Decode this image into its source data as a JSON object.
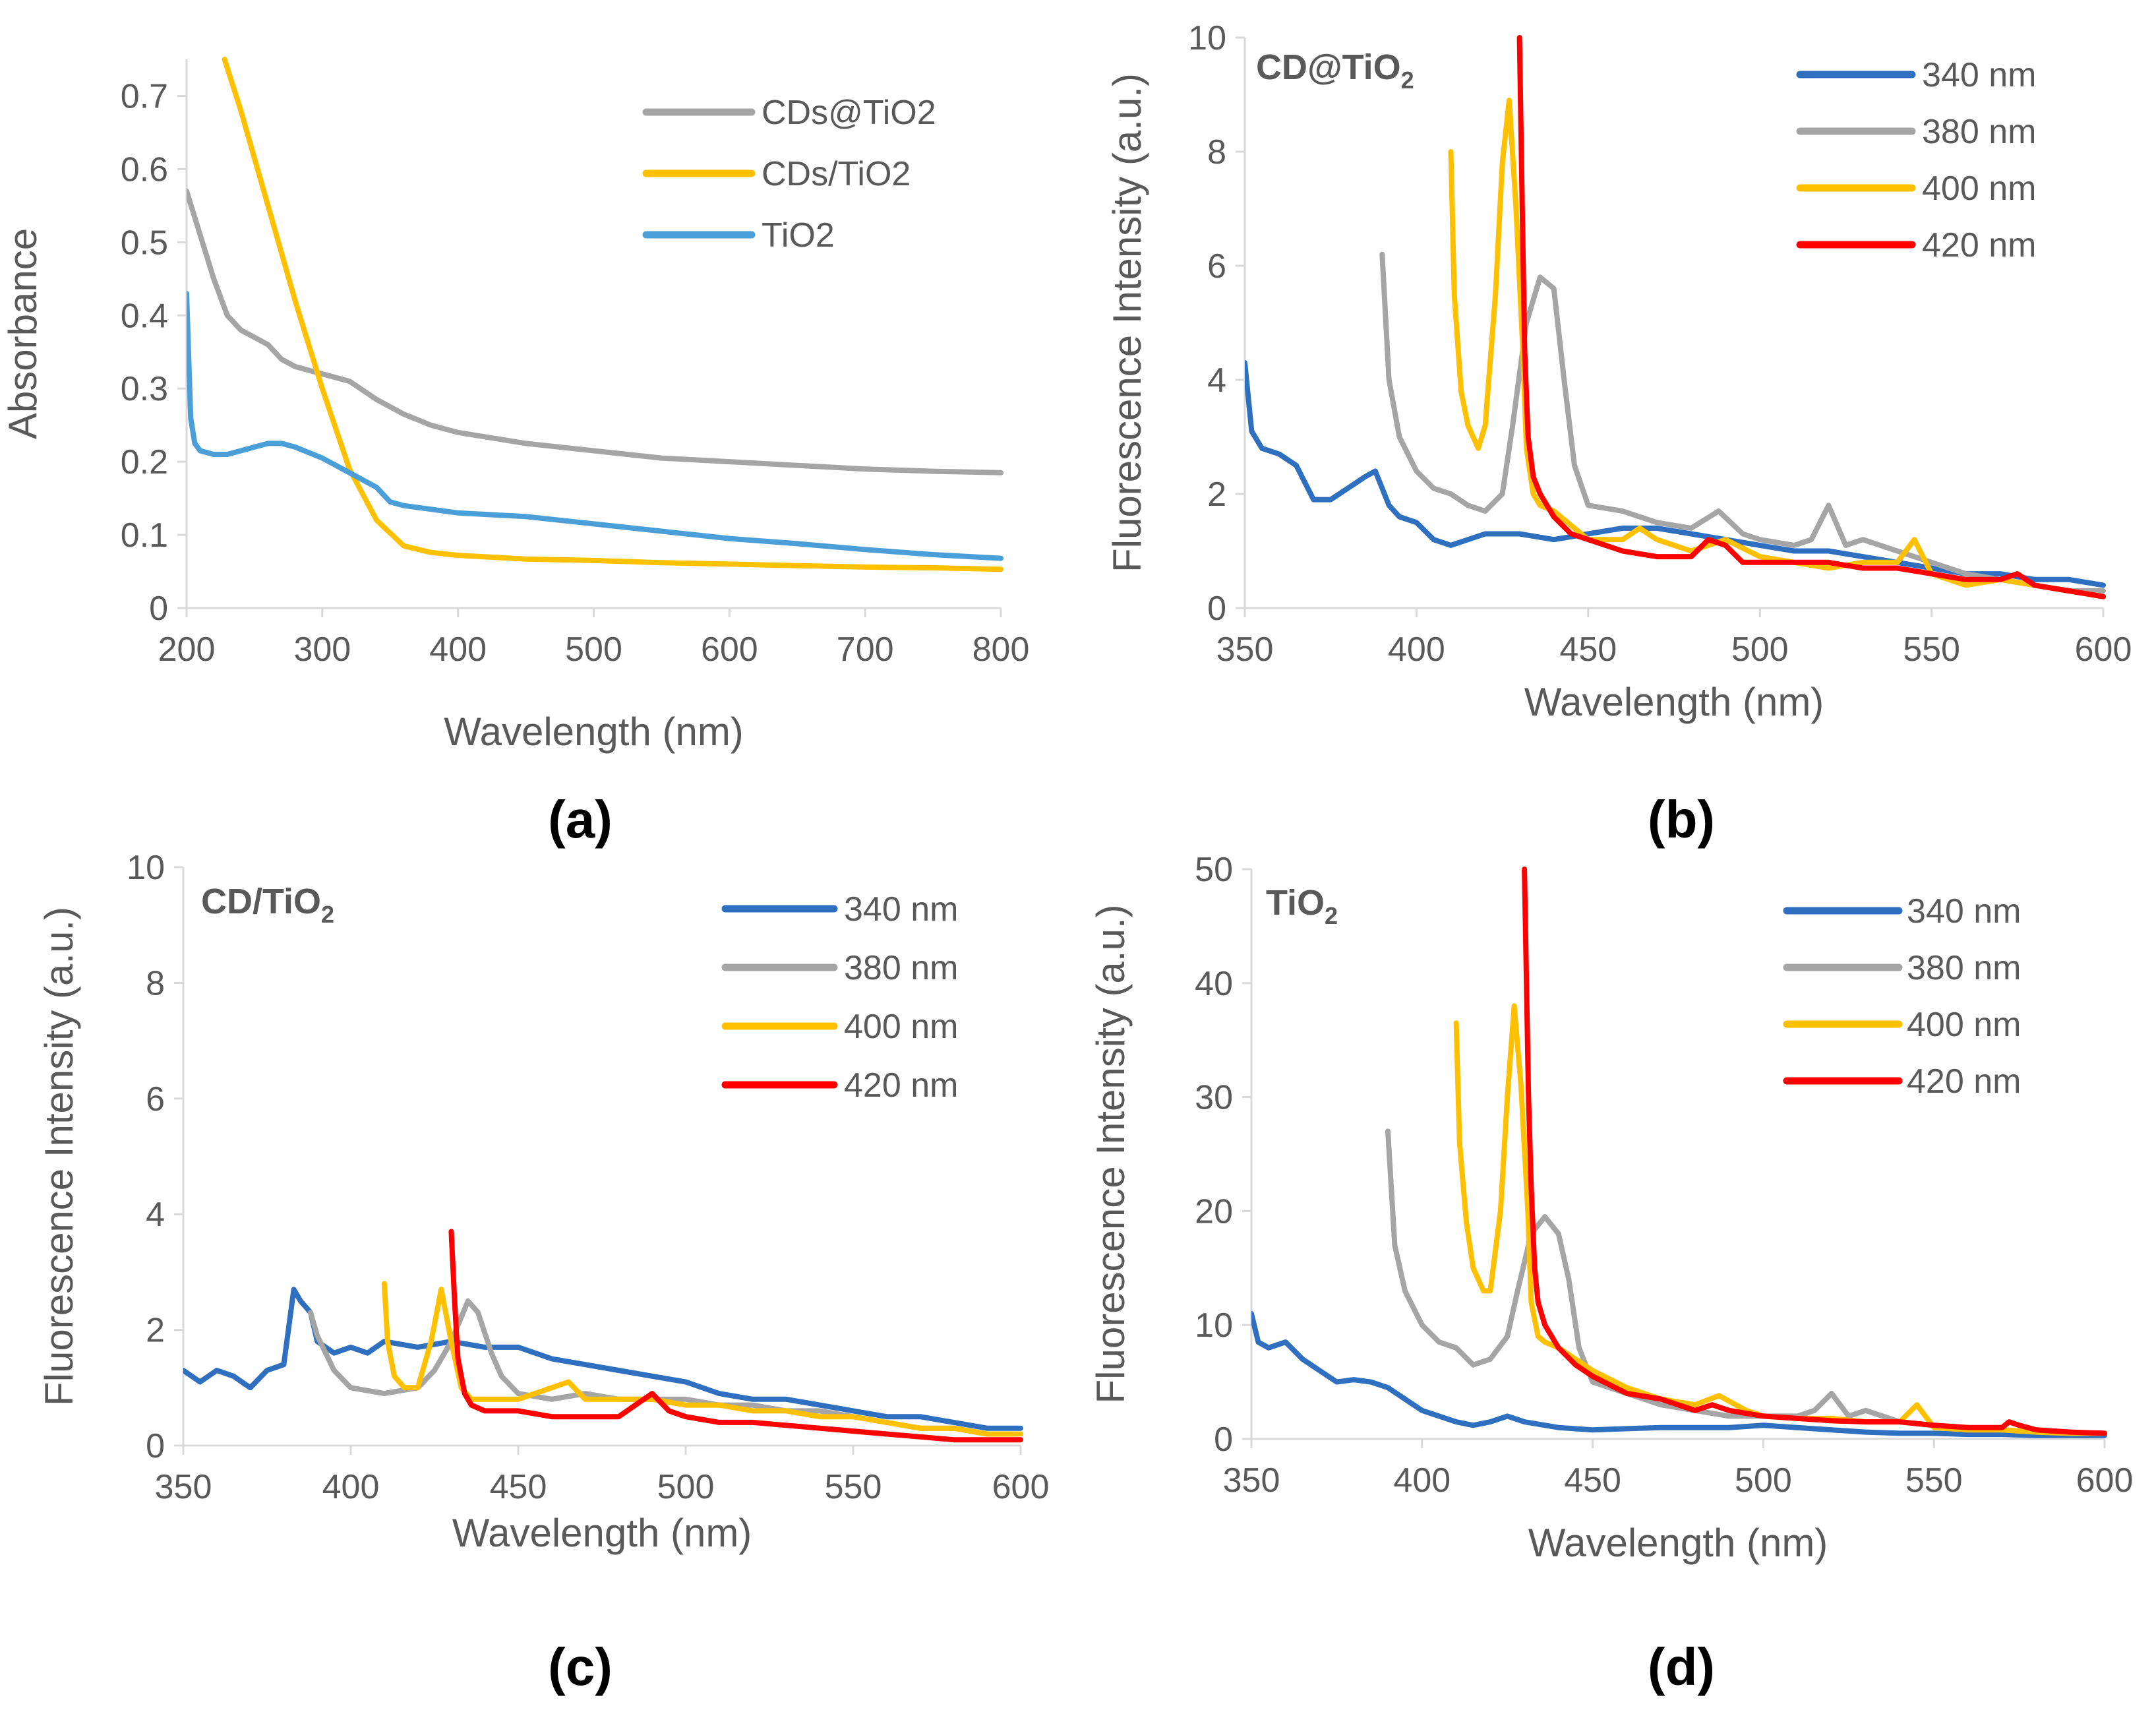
{
  "colors": {
    "gray": "#a5a5a5",
    "yellow": "#ffc000",
    "blue": "#4a9fd9",
    "darkblue": "#2e6fbf",
    "red": "#ff0000"
  },
  "chart_data": [
    {
      "id": "a",
      "type": "line",
      "panel_label": "(a)",
      "title": "",
      "xlabel": "Wavelength (nm)",
      "ylabel": "Absorbance",
      "xlim": [
        200,
        800
      ],
      "ylim": [
        0,
        0.75
      ],
      "xticks": [
        200,
        300,
        400,
        500,
        600,
        700,
        800
      ],
      "yticks": [
        0,
        0.1,
        0.2,
        0.3,
        0.4,
        0.5,
        0.6,
        0.7
      ],
      "ytick_labels": [
        "0",
        "0.1",
        "0.2",
        "0.3",
        "0.4",
        "0.5",
        "0.6",
        "0.7"
      ],
      "legend_position": "top-right",
      "series": [
        {
          "name": "CDs@TiO2",
          "color": "#a5a5a5",
          "x": [
            200,
            210,
            220,
            230,
            240,
            250,
            260,
            270,
            280,
            290,
            300,
            320,
            340,
            360,
            380,
            400,
            450,
            500,
            550,
            600,
            650,
            700,
            750,
            800
          ],
          "y": [
            0.57,
            0.51,
            0.45,
            0.4,
            0.38,
            0.37,
            0.36,
            0.34,
            0.33,
            0.325,
            0.32,
            0.31,
            0.285,
            0.265,
            0.25,
            0.24,
            0.225,
            0.215,
            0.205,
            0.2,
            0.195,
            0.19,
            0.187,
            0.185
          ]
        },
        {
          "name": "CDs/TiO2",
          "color": "#ffc000",
          "x": [
            228,
            240,
            260,
            280,
            300,
            320,
            340,
            360,
            380,
            400,
            450,
            500,
            550,
            600,
            650,
            700,
            750,
            800
          ],
          "y": [
            0.75,
            0.68,
            0.55,
            0.42,
            0.3,
            0.19,
            0.12,
            0.085,
            0.076,
            0.072,
            0.067,
            0.065,
            0.062,
            0.06,
            0.058,
            0.056,
            0.055,
            0.053
          ]
        },
        {
          "name": "TiO2",
          "color": "#4a9fd9",
          "x": [
            200,
            203,
            206,
            210,
            220,
            230,
            240,
            250,
            260,
            270,
            280,
            300,
            320,
            340,
            350,
            360,
            380,
            400,
            450,
            500,
            550,
            600,
            650,
            700,
            750,
            800
          ],
          "y": [
            0.43,
            0.26,
            0.225,
            0.215,
            0.21,
            0.21,
            0.215,
            0.22,
            0.225,
            0.225,
            0.22,
            0.205,
            0.185,
            0.165,
            0.145,
            0.14,
            0.135,
            0.13,
            0.125,
            0.115,
            0.105,
            0.095,
            0.088,
            0.08,
            0.073,
            0.068
          ]
        }
      ]
    },
    {
      "id": "b",
      "type": "line",
      "panel_label": "(b)",
      "title": "CD@TiO",
      "title_sub": "2",
      "xlabel": "Wavelength (nm)",
      "ylabel": "Fluorescence Intensity (a.u.)",
      "xlim": [
        350,
        600
      ],
      "ylim": [
        0,
        10
      ],
      "xticks": [
        350,
        400,
        450,
        500,
        550,
        600
      ],
      "yticks": [
        0,
        2,
        4,
        6,
        8,
        10
      ],
      "ytick_labels": [
        "0",
        "2",
        "4",
        "6",
        "8",
        "10"
      ],
      "legend_position": "top-right",
      "series": [
        {
          "name": "340 nm",
          "color": "#2e6fbf",
          "x": [
            350,
            352,
            355,
            360,
            365,
            370,
            375,
            380,
            385,
            388,
            392,
            395,
            400,
            405,
            410,
            420,
            430,
            440,
            450,
            460,
            470,
            480,
            490,
            500,
            510,
            520,
            530,
            540,
            550,
            560,
            570,
            580,
            590,
            600
          ],
          "y": [
            4.3,
            3.1,
            2.8,
            2.7,
            2.5,
            1.9,
            1.9,
            2.1,
            2.3,
            2.4,
            1.8,
            1.6,
            1.5,
            1.2,
            1.1,
            1.3,
            1.3,
            1.2,
            1.3,
            1.4,
            1.4,
            1.3,
            1.2,
            1.1,
            1.0,
            1.0,
            0.9,
            0.8,
            0.7,
            0.6,
            0.6,
            0.5,
            0.5,
            0.4
          ]
        },
        {
          "name": "380 nm",
          "color": "#a5a5a5",
          "x": [
            390,
            392,
            395,
            400,
            405,
            410,
            415,
            420,
            425,
            428,
            432,
            436,
            440,
            443,
            446,
            450,
            460,
            470,
            480,
            488,
            495,
            500,
            510,
            515,
            520,
            525,
            530,
            540,
            550,
            560,
            570,
            580,
            590,
            600
          ],
          "y": [
            6.2,
            4.0,
            3.0,
            2.4,
            2.1,
            2.0,
            1.8,
            1.7,
            2.0,
            3.2,
            5.0,
            5.8,
            5.6,
            4.0,
            2.5,
            1.8,
            1.7,
            1.5,
            1.4,
            1.7,
            1.3,
            1.2,
            1.1,
            1.2,
            1.8,
            1.1,
            1.2,
            1.0,
            0.8,
            0.6,
            0.5,
            0.4,
            0.3,
            0.3
          ]
        },
        {
          "name": "400 nm",
          "color": "#ffc000",
          "x": [
            410,
            411,
            413,
            415,
            418,
            420,
            423,
            425,
            427,
            429,
            431,
            432,
            434,
            436,
            440,
            450,
            460,
            465,
            470,
            480,
            490,
            500,
            510,
            520,
            530,
            540,
            545,
            550,
            560,
            570,
            580,
            590,
            600
          ],
          "y": [
            8.0,
            5.5,
            3.8,
            3.2,
            2.8,
            3.2,
            5.5,
            7.8,
            8.9,
            7.0,
            4.5,
            2.8,
            2.0,
            1.8,
            1.7,
            1.2,
            1.2,
            1.4,
            1.2,
            1.0,
            1.2,
            0.9,
            0.8,
            0.7,
            0.8,
            0.8,
            1.2,
            0.6,
            0.4,
            0.5,
            0.4,
            0.3,
            0.2
          ]
        },
        {
          "name": "420 nm",
          "color": "#ff0000",
          "x": [
            430,
            430.8,
            431.5,
            432.5,
            434,
            436,
            440,
            445,
            450,
            460,
            470,
            480,
            485,
            490,
            495,
            500,
            510,
            520,
            530,
            540,
            550,
            560,
            570,
            575,
            580,
            590,
            600
          ],
          "y": [
            10,
            7.0,
            4.5,
            3.0,
            2.3,
            2.0,
            1.6,
            1.3,
            1.2,
            1.0,
            0.9,
            0.9,
            1.2,
            1.1,
            0.8,
            0.8,
            0.8,
            0.8,
            0.7,
            0.7,
            0.6,
            0.5,
            0.5,
            0.6,
            0.4,
            0.3,
            0.2
          ]
        }
      ]
    },
    {
      "id": "c",
      "type": "line",
      "panel_label": "(c)",
      "title": "CD/TiO",
      "title_sub": "2",
      "xlabel": "Wavelength (nm)",
      "ylabel": "Fluorescence Intensity (a.u.)",
      "xlim": [
        350,
        600
      ],
      "ylim": [
        0,
        10
      ],
      "xticks": [
        350,
        400,
        450,
        500,
        550,
        600
      ],
      "yticks": [
        0,
        2,
        4,
        6,
        8,
        10
      ],
      "ytick_labels": [
        "0",
        "2",
        "4",
        "6",
        "8",
        "10"
      ],
      "legend_position": "top-right",
      "series": [
        {
          "name": "340 nm",
          "color": "#2e6fbf",
          "x": [
            350,
            355,
            360,
            365,
            370,
            375,
            380,
            383,
            385,
            388,
            390,
            395,
            400,
            405,
            410,
            420,
            430,
            440,
            450,
            460,
            470,
            480,
            490,
            500,
            510,
            520,
            530,
            540,
            550,
            560,
            570,
            580,
            590,
            600
          ],
          "y": [
            1.3,
            1.1,
            1.3,
            1.2,
            1.0,
            1.3,
            1.4,
            2.7,
            2.5,
            2.3,
            1.8,
            1.6,
            1.7,
            1.6,
            1.8,
            1.7,
            1.8,
            1.7,
            1.7,
            1.5,
            1.4,
            1.3,
            1.2,
            1.1,
            0.9,
            0.8,
            0.8,
            0.7,
            0.6,
            0.5,
            0.5,
            0.4,
            0.3,
            0.3
          ]
        },
        {
          "name": "380 nm",
          "color": "#a5a5a5",
          "x": [
            388,
            390,
            395,
            400,
            410,
            420,
            425,
            430,
            435,
            438,
            442,
            445,
            450,
            460,
            470,
            480,
            490,
            500,
            510,
            520,
            530,
            540,
            550,
            560,
            570,
            580,
            590,
            600
          ],
          "y": [
            2.3,
            1.9,
            1.3,
            1.0,
            0.9,
            1.0,
            1.3,
            1.8,
            2.5,
            2.3,
            1.6,
            1.2,
            0.9,
            0.8,
            0.9,
            0.8,
            0.8,
            0.8,
            0.7,
            0.7,
            0.6,
            0.6,
            0.5,
            0.4,
            0.3,
            0.3,
            0.2,
            0.2
          ]
        },
        {
          "name": "400 nm",
          "color": "#ffc000",
          "x": [
            410,
            411,
            413,
            416,
            420,
            424,
            427,
            430,
            433,
            436,
            440,
            450,
            460,
            465,
            470,
            480,
            490,
            500,
            510,
            520,
            530,
            540,
            550,
            560,
            570,
            580,
            590,
            600
          ],
          "y": [
            2.8,
            1.8,
            1.2,
            1.0,
            1.0,
            1.8,
            2.7,
            1.8,
            1.0,
            0.8,
            0.8,
            0.8,
            1.0,
            1.1,
            0.8,
            0.8,
            0.8,
            0.7,
            0.7,
            0.6,
            0.6,
            0.5,
            0.5,
            0.4,
            0.3,
            0.3,
            0.2,
            0.2
          ]
        },
        {
          "name": "420 nm",
          "color": "#ff0000",
          "x": [
            430,
            431,
            432,
            434,
            436,
            440,
            450,
            460,
            470,
            480,
            485,
            490,
            495,
            500,
            510,
            520,
            530,
            540,
            550,
            560,
            570,
            580,
            590,
            600
          ],
          "y": [
            3.7,
            2.5,
            1.5,
            0.9,
            0.7,
            0.6,
            0.6,
            0.5,
            0.5,
            0.5,
            0.7,
            0.9,
            0.6,
            0.5,
            0.4,
            0.4,
            0.35,
            0.3,
            0.25,
            0.2,
            0.15,
            0.1,
            0.1,
            0.1
          ]
        }
      ]
    },
    {
      "id": "d",
      "type": "line",
      "panel_label": "(d)",
      "title": "TiO",
      "title_sub": "2",
      "xlabel": "Wavelength (nm)",
      "ylabel": "Fluorescence Intensity (a.u.)",
      "xlim": [
        350,
        600
      ],
      "ylim": [
        0,
        50
      ],
      "xticks": [
        350,
        400,
        450,
        500,
        550,
        600
      ],
      "yticks": [
        0,
        10,
        20,
        30,
        40,
        50
      ],
      "ytick_labels": [
        "0",
        "10",
        "20",
        "30",
        "40",
        "50"
      ],
      "legend_position": "top-right",
      "series": [
        {
          "name": "340 nm",
          "color": "#2e6fbf",
          "x": [
            350,
            352,
            355,
            360,
            365,
            370,
            375,
            380,
            385,
            390,
            395,
            400,
            405,
            410,
            415,
            420,
            425,
            430,
            440,
            450,
            460,
            470,
            480,
            490,
            500,
            510,
            520,
            530,
            540,
            550,
            560,
            570,
            580,
            590,
            600
          ],
          "y": [
            11,
            8.5,
            8.0,
            8.5,
            7.0,
            6.0,
            5.0,
            5.2,
            5.0,
            4.5,
            3.5,
            2.5,
            2.0,
            1.5,
            1.2,
            1.5,
            2.0,
            1.5,
            1.0,
            0.8,
            0.9,
            1.0,
            1.0,
            1.0,
            1.2,
            1.0,
            0.8,
            0.6,
            0.5,
            0.5,
            0.4,
            0.4,
            0.3,
            0.3,
            0.3
          ]
        },
        {
          "name": "380 nm",
          "color": "#a5a5a5",
          "x": [
            390,
            392,
            395,
            400,
            405,
            410,
            415,
            420,
            425,
            428,
            432,
            436,
            440,
            443,
            446,
            450,
            460,
            470,
            480,
            490,
            500,
            510,
            515,
            520,
            525,
            530,
            540,
            550,
            560,
            570,
            580,
            590,
            600
          ],
          "y": [
            27,
            17,
            13,
            10,
            8.5,
            8.0,
            6.5,
            7.0,
            9.0,
            13,
            18,
            19.5,
            18,
            14,
            8.0,
            5.0,
            4.0,
            3.0,
            2.5,
            2.0,
            2.0,
            2.0,
            2.5,
            4.0,
            2.0,
            2.5,
            1.5,
            1.2,
            1.0,
            0.8,
            0.6,
            0.5,
            0.5
          ]
        },
        {
          "name": "400 nm",
          "color": "#ffc000",
          "x": [
            410,
            411,
            413,
            415,
            418,
            420,
            423,
            425,
            427,
            429,
            431,
            432,
            434,
            436,
            440,
            450,
            460,
            470,
            480,
            487,
            495,
            500,
            510,
            520,
            530,
            540,
            545,
            550,
            560,
            570,
            580,
            590,
            600
          ],
          "y": [
            36.5,
            26,
            19,
            15,
            13,
            13,
            20,
            30,
            38,
            31,
            20,
            12,
            9.0,
            8.5,
            8.0,
            6.0,
            4.5,
            3.5,
            3.0,
            3.8,
            2.5,
            2.0,
            1.8,
            1.8,
            1.5,
            1.5,
            3.0,
            1.0,
            0.8,
            0.8,
            0.6,
            0.5,
            0.5
          ]
        },
        {
          "name": "420 nm",
          "color": "#ff0000",
          "x": [
            430,
            430.6,
            431.2,
            432,
            433,
            434,
            436,
            440,
            445,
            450,
            460,
            470,
            480,
            485,
            490,
            500,
            510,
            520,
            530,
            540,
            550,
            560,
            570,
            572,
            575,
            580,
            590,
            600
          ],
          "y": [
            50,
            40,
            30,
            22,
            15,
            12,
            10,
            8.0,
            6.5,
            5.5,
            4.0,
            3.5,
            2.5,
            3.0,
            2.5,
            2.0,
            1.8,
            1.6,
            1.5,
            1.5,
            1.2,
            1.0,
            1.0,
            1.5,
            1.2,
            0.8,
            0.6,
            0.5
          ]
        }
      ]
    }
  ]
}
